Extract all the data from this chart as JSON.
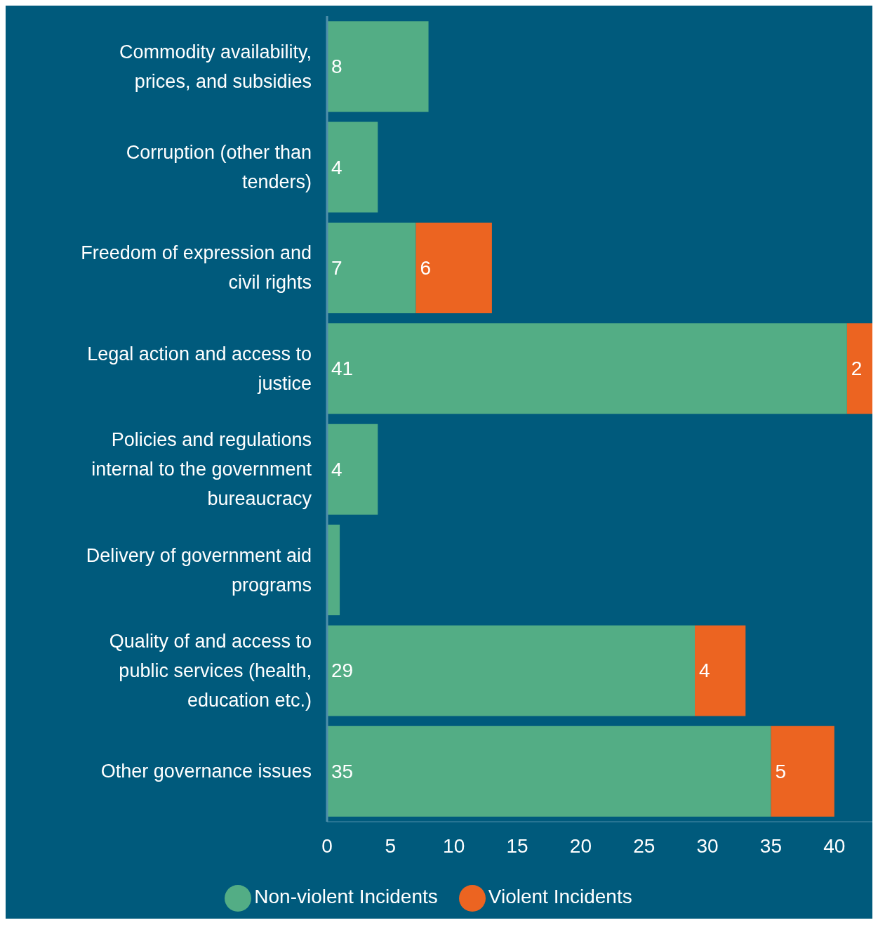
{
  "chart_data": {
    "type": "bar",
    "orientation": "horizontal",
    "stacked": true,
    "categories": [
      "Commodity availability, prices, and subsidies",
      "Corruption (other than tenders)",
      "Freedom of expression and civil rights",
      "Legal action and access to justice",
      "Policies and regulations internal to the government bureaucracy",
      "Delivery of government aid programs",
      "Quality of and access to public services (health, education etc.)",
      "Other governance issues"
    ],
    "series": [
      {
        "name": "Non-violent Incidents",
        "color": "#53ad85",
        "values": [
          8,
          4,
          7,
          41,
          4,
          1,
          29,
          35
        ],
        "value_labels": [
          "8",
          "4",
          "7",
          "41",
          "4",
          null,
          "29",
          "35"
        ]
      },
      {
        "name": "Violent Incidents",
        "color": "#ec6421",
        "values": [
          null,
          null,
          6,
          2,
          null,
          null,
          4,
          5
        ],
        "value_labels": [
          null,
          null,
          "6",
          "2",
          null,
          null,
          "4",
          "5"
        ]
      }
    ],
    "xlim": [
      0,
      43
    ],
    "xticks": [
      0,
      5,
      10,
      15,
      20,
      25,
      30,
      35,
      40
    ],
    "grid": false,
    "legend": "bottom"
  }
}
